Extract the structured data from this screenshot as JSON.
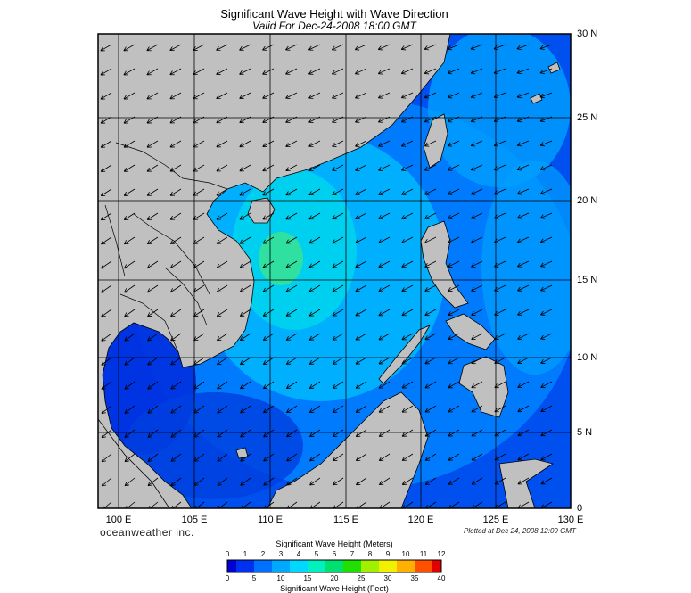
{
  "title": "Significant Wave Height with Wave Direction",
  "subtitle": "Valid For Dec-24-2008 18:00 GMT",
  "brand": "oceanweather inc.",
  "plotted": "Plotted at Dec 24, 2008 12:09 GMT",
  "longitude_labels": [
    "100 E",
    "105 E",
    "110 E",
    "115 E",
    "120 E",
    "125 E",
    "130 E"
  ],
  "latitude_labels": [
    "30 N",
    "25 N",
    "20 N",
    "15 N",
    "10 N",
    "5 N",
    "0"
  ],
  "colorbar": {
    "title_meters": "Significant Wave Height (Meters)",
    "title_feet": "Significant Wave Height (Feet)",
    "meters_ticks": [
      "0",
      "1",
      "2",
      "3",
      "4",
      "5",
      "6",
      "7",
      "8",
      "9",
      "10",
      "11",
      "12"
    ],
    "feet_ticks": [
      "0",
      "5",
      "10",
      "15",
      "20",
      "25",
      "30",
      "35",
      "40"
    ],
    "colors": [
      "#0000d0",
      "#0030f0",
      "#0070ff",
      "#00a8ff",
      "#00d8ff",
      "#00f0c0",
      "#00e070",
      "#20e000",
      "#a0f000",
      "#f0f000",
      "#ffb000",
      "#ff5000",
      "#e00000"
    ]
  },
  "map": {
    "lon_range": [
      99,
      130
    ],
    "lat_range": [
      0,
      30
    ],
    "land_color": "#c0c0c0",
    "border_color": "#000000"
  }
}
